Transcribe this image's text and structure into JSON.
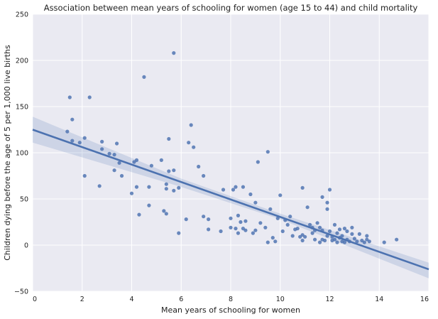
{
  "chart_data": {
    "type": "scatter",
    "title": "Association between mean years of schooling for women (age 15 to 44) and child mortality",
    "xlabel": "Mean years of schooling for women",
    "ylabel": "Children dying before the age of 5 per 1,000 live births",
    "xlim": [
      0,
      16
    ],
    "ylim": [
      -50,
      250
    ],
    "xticks": [
      "0",
      "2",
      "4",
      "6",
      "8",
      "10",
      "12",
      "14",
      "16"
    ],
    "yticks": [
      "−50",
      "0",
      "50",
      "100",
      "150",
      "200",
      "250"
    ],
    "grid": true,
    "colors": {
      "background": "#eaeaf2",
      "grid": "#ffffff",
      "points": "#4c72b0",
      "band": "#4c72b0"
    },
    "regression": {
      "intercept": 125,
      "slope": -9.45,
      "ci": [
        {
          "x": 0,
          "lo": 111,
          "hi": 139
        },
        {
          "x": 6,
          "lo": 63,
          "hi": 72
        },
        {
          "x": 10,
          "lo": 28,
          "hi": 34
        },
        {
          "x": 16,
          "lo": -36,
          "hi": -19
        }
      ]
    },
    "points": [
      [
        1.5,
        160
      ],
      [
        1.6,
        136
      ],
      [
        1.4,
        123
      ],
      [
        1.6,
        113
      ],
      [
        1.9,
        111
      ],
      [
        2.1,
        116
      ],
      [
        2.3,
        160
      ],
      [
        2.1,
        75
      ],
      [
        2.7,
        64
      ],
      [
        2.8,
        112
      ],
      [
        2.8,
        104
      ],
      [
        3.1,
        99
      ],
      [
        3.3,
        98
      ],
      [
        3.4,
        110
      ],
      [
        3.3,
        81
      ],
      [
        3.5,
        89
      ],
      [
        3.6,
        75
      ],
      [
        4.0,
        56
      ],
      [
        4.1,
        90
      ],
      [
        4.2,
        92
      ],
      [
        4.2,
        63
      ],
      [
        4.3,
        33
      ],
      [
        4.5,
        182
      ],
      [
        4.7,
        63
      ],
      [
        4.7,
        43
      ],
      [
        4.8,
        86
      ],
      [
        5.2,
        92
      ],
      [
        5.3,
        37
      ],
      [
        5.4,
        34
      ],
      [
        5.4,
        66
      ],
      [
        5.4,
        61
      ],
      [
        5.5,
        115
      ],
      [
        5.5,
        80
      ],
      [
        5.7,
        81
      ],
      [
        5.7,
        59
      ],
      [
        5.7,
        208
      ],
      [
        5.9,
        62
      ],
      [
        5.9,
        13
      ],
      [
        6.2,
        28
      ],
      [
        6.3,
        111
      ],
      [
        6.4,
        130
      ],
      [
        6.5,
        106
      ],
      [
        6.7,
        85
      ],
      [
        6.9,
        75
      ],
      [
        6.9,
        31
      ],
      [
        7.1,
        17
      ],
      [
        7.1,
        28
      ],
      [
        7.6,
        15
      ],
      [
        7.7,
        60
      ],
      [
        8.0,
        29
      ],
      [
        8.0,
        19
      ],
      [
        8.1,
        60
      ],
      [
        8.2,
        63
      ],
      [
        8.2,
        18
      ],
      [
        8.3,
        13
      ],
      [
        8.3,
        32
      ],
      [
        8.4,
        25
      ],
      [
        8.5,
        18
      ],
      [
        8.5,
        63
      ],
      [
        8.6,
        16
      ],
      [
        8.6,
        26
      ],
      [
        8.8,
        55
      ],
      [
        8.9,
        13
      ],
      [
        9.0,
        16
      ],
      [
        9.0,
        46
      ],
      [
        9.1,
        90
      ],
      [
        9.2,
        24
      ],
      [
        9.4,
        19
      ],
      [
        9.5,
        101
      ],
      [
        9.5,
        3
      ],
      [
        9.6,
        39
      ],
      [
        9.7,
        8
      ],
      [
        9.8,
        4
      ],
      [
        9.9,
        29
      ],
      [
        10.0,
        54
      ],
      [
        10.1,
        15
      ],
      [
        10.2,
        27
      ],
      [
        10.3,
        22
      ],
      [
        10.4,
        31
      ],
      [
        10.5,
        10
      ],
      [
        10.6,
        17
      ],
      [
        10.7,
        18
      ],
      [
        10.8,
        9
      ],
      [
        10.9,
        11
      ],
      [
        10.9,
        62
      ],
      [
        10.9,
        5
      ],
      [
        11.0,
        9
      ],
      [
        11.1,
        41
      ],
      [
        11.2,
        22
      ],
      [
        11.3,
        13
      ],
      [
        11.3,
        19
      ],
      [
        11.4,
        6
      ],
      [
        11.4,
        16
      ],
      [
        11.5,
        24
      ],
      [
        11.6,
        3
      ],
      [
        11.6,
        19
      ],
      [
        11.7,
        16
      ],
      [
        11.7,
        52
      ],
      [
        11.7,
        6
      ],
      [
        11.8,
        5
      ],
      [
        11.9,
        10
      ],
      [
        11.9,
        46
      ],
      [
        11.9,
        39
      ],
      [
        12.0,
        60
      ],
      [
        12.0,
        15
      ],
      [
        12.1,
        5
      ],
      [
        12.1,
        9
      ],
      [
        12.2,
        22
      ],
      [
        12.2,
        6
      ],
      [
        12.3,
        13
      ],
      [
        12.3,
        3
      ],
      [
        12.4,
        17
      ],
      [
        12.4,
        8
      ],
      [
        12.5,
        4
      ],
      [
        12.5,
        10
      ],
      [
        12.6,
        3
      ],
      [
        12.6,
        18
      ],
      [
        12.7,
        15
      ],
      [
        12.7,
        6
      ],
      [
        12.8,
        4
      ],
      [
        12.9,
        19
      ],
      [
        12.9,
        12
      ],
      [
        13.0,
        7
      ],
      [
        13.1,
        4
      ],
      [
        13.2,
        12
      ],
      [
        13.3,
        5
      ],
      [
        13.4,
        3
      ],
      [
        13.5,
        6
      ],
      [
        13.5,
        10
      ],
      [
        13.6,
        4
      ],
      [
        14.2,
        3
      ],
      [
        14.7,
        6
      ]
    ]
  }
}
